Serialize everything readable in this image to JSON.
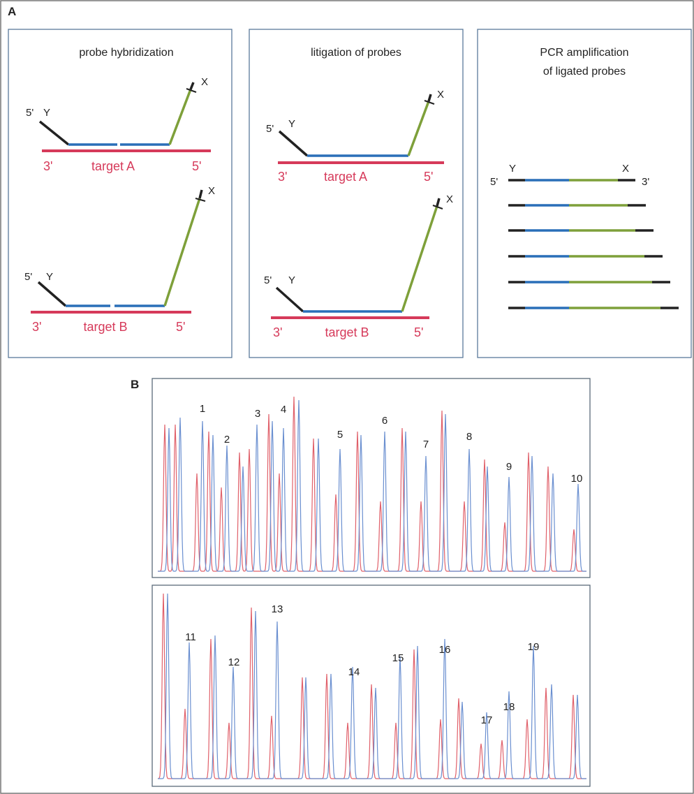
{
  "panel_labels": {
    "a": "A",
    "b": "B"
  },
  "panels": {
    "hybridization": {
      "title": "probe hybridization",
      "targets": [
        {
          "left_end": "3'",
          "label": "target A",
          "right_end": "5'",
          "probe_left_end": "5'",
          "probe_left_tag": "Y",
          "probe_right_tag": "X"
        },
        {
          "left_end": "3'",
          "label": "target B",
          "right_end": "5'",
          "probe_left_end": "5'",
          "probe_left_tag": "Y",
          "probe_right_tag": "X"
        }
      ]
    },
    "ligation": {
      "title": "litigation of probes",
      "targets": [
        {
          "left_end": "3'",
          "label": "target A",
          "right_end": "5'",
          "probe_left_end": "5'",
          "probe_left_tag": "Y",
          "probe_right_tag": "X"
        },
        {
          "left_end": "3'",
          "label": "target B",
          "right_end": "5'",
          "probe_left_end": "5'",
          "probe_left_tag": "Y",
          "probe_right_tag": "X"
        }
      ]
    },
    "pcr": {
      "title_line1": "PCR amplification",
      "title_line2": "of ligated probes",
      "left_end": "5'",
      "right_end": "3'",
      "left_tag": "Y",
      "right_tag": "X",
      "product_count": 6
    }
  },
  "peak_labels": {
    "top": [
      "1",
      "2",
      "3",
      "4",
      "5",
      "6",
      "7",
      "8",
      "9",
      "10"
    ],
    "bottom": [
      "11",
      "12",
      "13",
      "14",
      "15",
      "16",
      "17",
      "18",
      "19"
    ]
  },
  "colors": {
    "target": "#d63a5a",
    "probe_blue": "#2a6fb8",
    "probe_green": "#7ea03a",
    "primer_black": "#222222",
    "trace_red": "#e0606a",
    "trace_blue": "#6a8fd0",
    "box_border": "#5a7a9a"
  }
}
